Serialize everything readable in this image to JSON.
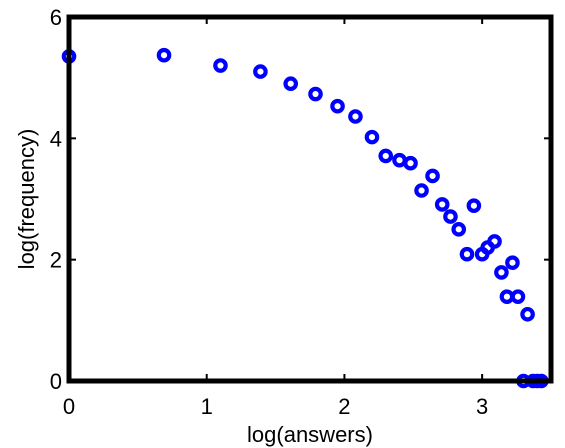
{
  "chart_data": {
    "type": "scatter",
    "title": "",
    "xlabel": "log(answers)",
    "ylabel": "log(frequency)",
    "xlim": [
      0,
      3.5
    ],
    "ylim": [
      0,
      6
    ],
    "xticks": [
      "0",
      "1",
      "2",
      "3"
    ],
    "yticks": [
      "0",
      "2",
      "4",
      "6"
    ],
    "grid": false,
    "marker_color": "#0000ff",
    "points": [
      {
        "x": 0.0,
        "y": 5.35
      },
      {
        "x": 0.69,
        "y": 5.37
      },
      {
        "x": 1.1,
        "y": 5.2
      },
      {
        "x": 1.39,
        "y": 5.1
      },
      {
        "x": 1.61,
        "y": 4.9
      },
      {
        "x": 1.79,
        "y": 4.73
      },
      {
        "x": 1.95,
        "y": 4.53
      },
      {
        "x": 2.08,
        "y": 4.36
      },
      {
        "x": 2.2,
        "y": 4.02
      },
      {
        "x": 2.3,
        "y": 3.71
      },
      {
        "x": 2.4,
        "y": 3.64
      },
      {
        "x": 2.48,
        "y": 3.59
      },
      {
        "x": 2.56,
        "y": 3.14
      },
      {
        "x": 2.64,
        "y": 3.38
      },
      {
        "x": 2.71,
        "y": 2.91
      },
      {
        "x": 2.77,
        "y": 2.71
      },
      {
        "x": 2.83,
        "y": 2.5
      },
      {
        "x": 2.89,
        "y": 2.09
      },
      {
        "x": 2.94,
        "y": 2.89
      },
      {
        "x": 3.0,
        "y": 2.09
      },
      {
        "x": 3.04,
        "y": 2.2
      },
      {
        "x": 3.09,
        "y": 2.3
      },
      {
        "x": 3.14,
        "y": 1.79
      },
      {
        "x": 3.18,
        "y": 1.39
      },
      {
        "x": 3.22,
        "y": 1.95
      },
      {
        "x": 3.26,
        "y": 1.39
      },
      {
        "x": 3.3,
        "y": 0.0
      },
      {
        "x": 3.33,
        "y": 1.1
      },
      {
        "x": 3.37,
        "y": 0.0
      },
      {
        "x": 3.4,
        "y": 0.0
      },
      {
        "x": 3.43,
        "y": 0.0
      }
    ]
  }
}
